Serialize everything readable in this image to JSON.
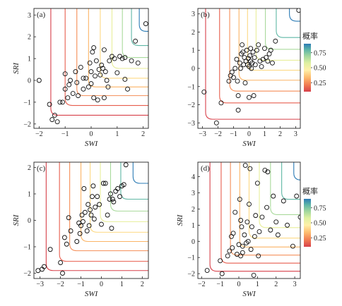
{
  "colorbar": {
    "title": "概率",
    "ticks": [
      "0.75",
      "0.50",
      "0.25"
    ],
    "tick_values": [
      0.75,
      0.5,
      0.25
    ],
    "range": [
      0.1,
      0.9
    ],
    "colors": [
      "#d7404a",
      "#f27f53",
      "#fdbd6f",
      "#fff0a8",
      "#dff0a0",
      "#9ed59e",
      "#5bb4a8",
      "#2b7bb5"
    ]
  },
  "chart_data": [
    {
      "type": "scatter",
      "panel_label": "(a)",
      "xlabel": "SWI",
      "ylabel": "SRI",
      "xlim": [
        -2.2,
        2.2
      ],
      "ylim": [
        -2.2,
        3.3
      ],
      "xticks": [
        "-2",
        "-1",
        "0",
        "1",
        "2"
      ],
      "yticks": [
        "-2",
        "-1",
        "0",
        "1",
        "2",
        "3"
      ],
      "contours": [
        {
          "level": 0.1,
          "x": -1.55,
          "y": -1.6,
          "color": "#d7404a"
        },
        {
          "level": 0.2,
          "x": -1.0,
          "y": -1.15,
          "color": "#e75e4e"
        },
        {
          "level": 0.3,
          "x": -0.55,
          "y": -0.7,
          "color": "#f58e58"
        },
        {
          "level": 0.4,
          "x": -0.1,
          "y": -0.3,
          "color": "#fbb466"
        },
        {
          "level": 0.5,
          "x": 0.35,
          "y": 0.1,
          "color": "#fdd984"
        },
        {
          "level": 0.6,
          "x": 0.8,
          "y": 0.55,
          "color": "#e8ee9a"
        },
        {
          "level": 0.7,
          "x": 1.2,
          "y": 1.05,
          "color": "#a9da9c"
        },
        {
          "level": 0.8,
          "x": 1.55,
          "y": 1.6,
          "color": "#5fb7a5"
        },
        {
          "level": 0.9,
          "x": 1.85,
          "y": 2.25,
          "color": "#2b7bb5"
        }
      ],
      "points": [
        [
          -2.0,
          0.0
        ],
        [
          -1.6,
          -1.1
        ],
        [
          -1.5,
          -1.8
        ],
        [
          -1.4,
          -1.6
        ],
        [
          -1.3,
          -1.9
        ],
        [
          -1.2,
          -1.0
        ],
        [
          -1.1,
          -1.0
        ],
        [
          -1.0,
          -0.4
        ],
        [
          -1.0,
          0.3
        ],
        [
          -0.9,
          -0.8
        ],
        [
          -0.85,
          -0.2
        ],
        [
          -0.8,
          0.0
        ],
        [
          -0.7,
          -0.6
        ],
        [
          -0.6,
          0.4
        ],
        [
          -0.55,
          -0.1
        ],
        [
          -0.5,
          -0.7
        ],
        [
          -0.4,
          0.6
        ],
        [
          -0.3,
          0.1
        ],
        [
          -0.3,
          -0.4
        ],
        [
          -0.2,
          0.1
        ],
        [
          -0.1,
          -0.3
        ],
        [
          -0.05,
          0.8
        ],
        [
          0.0,
          0.4
        ],
        [
          0.0,
          -0.15
        ],
        [
          0.05,
          1.3
        ],
        [
          0.1,
          1.5
        ],
        [
          0.1,
          -0.8
        ],
        [
          0.15,
          0.2
        ],
        [
          0.2,
          0.9
        ],
        [
          0.25,
          -0.9
        ],
        [
          0.3,
          0.5
        ],
        [
          0.35,
          0.25
        ],
        [
          0.4,
          0.7
        ],
        [
          0.45,
          0.55
        ],
        [
          0.5,
          -0.8
        ],
        [
          0.5,
          1.4
        ],
        [
          0.55,
          0.4
        ],
        [
          0.6,
          0.0
        ],
        [
          0.65,
          -0.3
        ],
        [
          0.7,
          0.9
        ],
        [
          0.8,
          1.1
        ],
        [
          0.9,
          1.0
        ],
        [
          1.0,
          0.35
        ],
        [
          1.1,
          1.1
        ],
        [
          1.2,
          1.0
        ],
        [
          1.3,
          0.05
        ],
        [
          1.4,
          -0.4
        ],
        [
          1.55,
          0.9
        ],
        [
          1.7,
          1.8
        ],
        [
          1.8,
          0.8
        ],
        [
          2.1,
          2.6
        ],
        [
          1.3,
          1.05
        ]
      ]
    },
    {
      "type": "scatter",
      "panel_label": "(b)",
      "xlabel": "SWI",
      "ylabel": "",
      "xlim": [
        -3.3,
        3.3
      ],
      "ylim": [
        -3.3,
        3.3
      ],
      "xticks": [
        "-3",
        "-2",
        "-1",
        "0",
        "1",
        "2",
        "3"
      ],
      "yticks": [
        "-3",
        "-2",
        "-1",
        "0",
        "1",
        "2",
        "3"
      ],
      "contours": [
        {
          "level": 0.1,
          "x": -2.8,
          "y": -2.8,
          "color": "#d7404a"
        },
        {
          "level": 0.2,
          "x": -1.9,
          "y": -1.9,
          "color": "#e75e4e"
        },
        {
          "level": 0.3,
          "x": -1.25,
          "y": -1.25,
          "color": "#f58e58"
        },
        {
          "level": 0.4,
          "x": -0.65,
          "y": -0.65,
          "color": "#fbb466"
        },
        {
          "level": 0.5,
          "x": -0.1,
          "y": -0.1,
          "color": "#fdd984"
        },
        {
          "level": 0.6,
          "x": 0.45,
          "y": 0.45,
          "color": "#e8ee9a"
        },
        {
          "level": 0.7,
          "x": 1.05,
          "y": 1.05,
          "color": "#a9da9c"
        },
        {
          "level": 0.8,
          "x": 1.75,
          "y": 1.7,
          "color": "#5fb7a5"
        },
        {
          "level": 0.9,
          "x": 2.6,
          "y": 2.6,
          "color": "#2b7bb5"
        }
      ],
      "points": [
        [
          -2.9,
          -1.3
        ],
        [
          -2.1,
          -3.0
        ],
        [
          -1.8,
          -1.9
        ],
        [
          -1.3,
          -0.7
        ],
        [
          -1.2,
          -0.4
        ],
        [
          -1.1,
          -0.2
        ],
        [
          -1.0,
          -0.5
        ],
        [
          -0.9,
          0.0
        ],
        [
          -0.8,
          0.5
        ],
        [
          -0.75,
          -0.7
        ],
        [
          -0.7,
          -2.3
        ],
        [
          -0.6,
          0.3
        ],
        [
          -0.55,
          0.0
        ],
        [
          -0.5,
          0.8
        ],
        [
          -0.45,
          1.3
        ],
        [
          -0.4,
          0.9
        ],
        [
          -0.35,
          0.2
        ],
        [
          -0.3,
          0.6
        ],
        [
          -0.25,
          -0.8
        ],
        [
          -0.2,
          0.4
        ],
        [
          -0.15,
          1.0
        ],
        [
          -0.1,
          0.2
        ],
        [
          -0.05,
          0.55
        ],
        [
          0.0,
          0.1
        ],
        [
          0.05,
          0.7
        ],
        [
          0.1,
          0.4
        ],
        [
          0.1,
          1.1
        ],
        [
          0.15,
          0.0
        ],
        [
          0.2,
          0.3
        ],
        [
          0.25,
          0.9
        ],
        [
          0.3,
          -1.5
        ],
        [
          0.35,
          0.6
        ],
        [
          0.4,
          0.2
        ],
        [
          0.5,
          1.0
        ],
        [
          0.6,
          1.3
        ],
        [
          0.7,
          0.4
        ],
        [
          0.8,
          0.1
        ],
        [
          0.9,
          0.5
        ],
        [
          1.0,
          1.1
        ],
        [
          1.1,
          0.6
        ],
        [
          1.2,
          0.4
        ],
        [
          1.3,
          0.8
        ],
        [
          1.4,
          1.0
        ],
        [
          1.5,
          0.3
        ],
        [
          1.7,
          1.5
        ],
        [
          3.2,
          3.2
        ],
        [
          -0.7,
          -1.5
        ],
        [
          0.0,
          -1.6
        ]
      ]
    },
    {
      "type": "scatter",
      "panel_label": "(c)",
      "xlabel": "SWI",
      "ylabel": "SRI",
      "xlim": [
        -3.3,
        2.3
      ],
      "ylim": [
        -2.2,
        2.2
      ],
      "xticks": [
        "-3",
        "-2",
        "-1",
        "0",
        "1",
        "2"
      ],
      "yticks": [
        "-2",
        "-1",
        "0",
        "1",
        "2"
      ],
      "contours": [
        {
          "level": 0.1,
          "x": -2.7,
          "y": -1.9,
          "color": "#d7404a"
        },
        {
          "level": 0.2,
          "x": -2.05,
          "y": -1.55,
          "color": "#e75e4e"
        },
        {
          "level": 0.3,
          "x": -1.55,
          "y": -1.15,
          "color": "#f58e58"
        },
        {
          "level": 0.4,
          "x": -1.0,
          "y": -0.8,
          "color": "#fbb466"
        },
        {
          "level": 0.5,
          "x": -0.55,
          "y": -0.45,
          "color": "#fdd984"
        },
        {
          "level": 0.6,
          "x": -0.05,
          "y": -0.05,
          "color": "#e8ee9a"
        },
        {
          "level": 0.7,
          "x": 0.45,
          "y": 0.35,
          "color": "#a9da9c"
        },
        {
          "level": 0.8,
          "x": 0.95,
          "y": 0.8,
          "color": "#5fb7a5"
        },
        {
          "level": 0.9,
          "x": 1.55,
          "y": 1.4,
          "color": "#2b7bb5"
        }
      ],
      "points": [
        [
          -3.1,
          -1.9
        ],
        [
          -2.9,
          -1.85
        ],
        [
          -2.8,
          -1.75
        ],
        [
          -2.5,
          -1.1
        ],
        [
          -2.0,
          -1.6
        ],
        [
          -1.9,
          -2.0
        ],
        [
          -1.8,
          -0.65
        ],
        [
          -1.6,
          0.1
        ],
        [
          -1.5,
          -0.4
        ],
        [
          -1.2,
          -0.8
        ],
        [
          -1.1,
          -0.1
        ],
        [
          -1.05,
          -0.5
        ],
        [
          -1.0,
          -0.2
        ],
        [
          -0.95,
          0.2
        ],
        [
          -0.9,
          -0.05
        ],
        [
          -0.85,
          1.2
        ],
        [
          -0.8,
          0.3
        ],
        [
          -0.7,
          -0.4
        ],
        [
          -0.65,
          0.6
        ],
        [
          -0.6,
          -0.2
        ],
        [
          -0.5,
          0.2
        ],
        [
          -0.45,
          0.9
        ],
        [
          -0.4,
          1.3
        ],
        [
          -0.35,
          0.05
        ],
        [
          -0.3,
          0.5
        ],
        [
          -0.2,
          0.9
        ],
        [
          -0.1,
          0.6
        ],
        [
          0.0,
          -0.15
        ],
        [
          0.1,
          1.4
        ],
        [
          0.2,
          1.4
        ],
        [
          0.3,
          0.2
        ],
        [
          0.4,
          0.8
        ],
        [
          0.5,
          -0.3
        ],
        [
          0.55,
          0.8
        ],
        [
          0.6,
          0.7
        ],
        [
          0.7,
          1.1
        ],
        [
          0.8,
          1.2
        ],
        [
          0.9,
          0.9
        ],
        [
          1.0,
          1.3
        ],
        [
          1.1,
          1.35
        ],
        [
          1.2,
          2.1
        ],
        [
          -1.7,
          -0.9
        ],
        [
          -0.55,
          0.4
        ],
        [
          0.45,
          1.0
        ]
      ]
    },
    {
      "type": "scatter",
      "panel_label": "(d)",
      "xlabel": "SWI",
      "ylabel": "SRI",
      "xlim": [
        -2.2,
        3.3
      ],
      "ylim": [
        -2.3,
        4.9
      ],
      "xticks": [
        "-2",
        "-1",
        "0",
        "1",
        "2",
        "3"
      ],
      "yticks": [
        "-2",
        "-1",
        "0",
        "1",
        "2",
        "3",
        "4"
      ],
      "contours": [
        {
          "level": 0.1,
          "x": -1.55,
          "y": -1.85,
          "color": "#d7404a"
        },
        {
          "level": 0.2,
          "x": -0.95,
          "y": -1.35,
          "color": "#e75e4e"
        },
        {
          "level": 0.3,
          "x": -0.45,
          "y": -0.85,
          "color": "#f58e58"
        },
        {
          "level": 0.4,
          "x": 0.05,
          "y": -0.35,
          "color": "#fbb466"
        },
        {
          "level": 0.5,
          "x": 0.55,
          "y": 0.2,
          "color": "#fdd984"
        },
        {
          "level": 0.6,
          "x": 1.1,
          "y": 0.85,
          "color": "#e8ee9a"
        },
        {
          "level": 0.7,
          "x": 1.7,
          "y": 1.65,
          "color": "#a9da9c"
        },
        {
          "level": 0.8,
          "x": 2.3,
          "y": 2.6,
          "color": "#5fb7a5"
        },
        {
          "level": 0.9,
          "x": 2.95,
          "y": 3.8,
          "color": "#2b7bb5"
        }
      ],
      "points": [
        [
          -1.7,
          -1.8
        ],
        [
          -1.0,
          -1.2
        ],
        [
          -0.9,
          -2.0
        ],
        [
          -0.6,
          -0.9
        ],
        [
          -0.5,
          -0.6
        ],
        [
          -0.4,
          0.3
        ],
        [
          -0.35,
          -0.4
        ],
        [
          -0.3,
          0.5
        ],
        [
          -0.2,
          1.8
        ],
        [
          -0.1,
          -0.8
        ],
        [
          0.0,
          -0.2
        ],
        [
          0.05,
          2.6
        ],
        [
          0.1,
          -0.9
        ],
        [
          0.15,
          0.9
        ],
        [
          0.2,
          -0.3
        ],
        [
          0.3,
          0.4
        ],
        [
          0.35,
          4.7
        ],
        [
          0.4,
          -0.1
        ],
        [
          0.45,
          1.2
        ],
        [
          0.5,
          0.0
        ],
        [
          0.55,
          2.3
        ],
        [
          0.6,
          4.5
        ],
        [
          0.65,
          -0.5
        ],
        [
          0.7,
          0.9
        ],
        [
          0.8,
          -2.1
        ],
        [
          0.85,
          0.3
        ],
        [
          0.9,
          1.6
        ],
        [
          1.0,
          3.6
        ],
        [
          1.05,
          -0.9
        ],
        [
          1.1,
          0.6
        ],
        [
          1.25,
          1.5
        ],
        [
          1.4,
          4.4
        ],
        [
          1.5,
          2.1
        ],
        [
          1.55,
          4.3
        ],
        [
          1.7,
          0.7
        ],
        [
          1.85,
          2.8
        ],
        [
          2.0,
          1.2
        ],
        [
          2.1,
          0.4
        ],
        [
          2.4,
          2.5
        ],
        [
          2.6,
          1.0
        ],
        [
          2.9,
          -0.3
        ],
        [
          3.1,
          2.8
        ],
        [
          3.3,
          1.5
        ],
        [
          0.2,
          -0.7
        ],
        [
          0.1,
          1.3
        ]
      ]
    }
  ]
}
